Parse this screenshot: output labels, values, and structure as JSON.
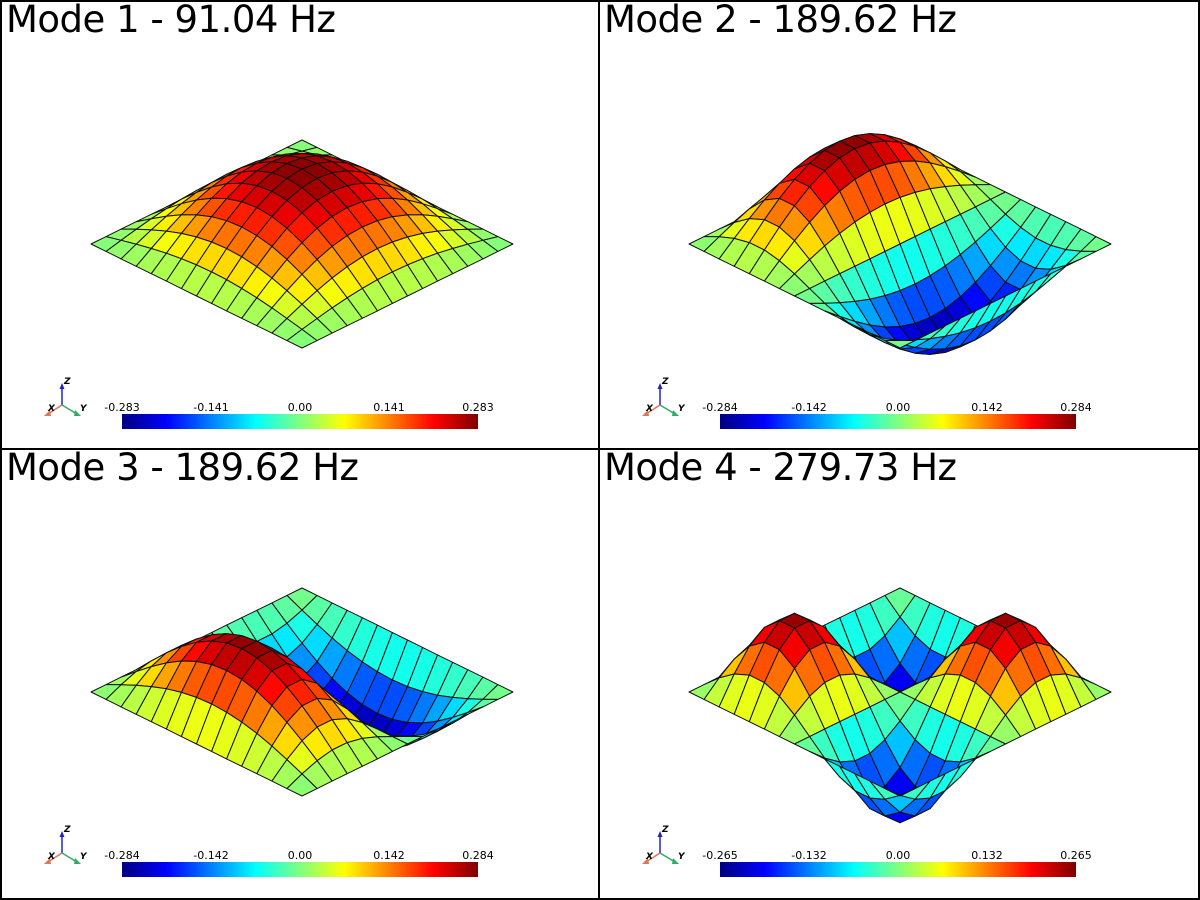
{
  "panels": [
    {
      "title": "Mode 1 - 91.04 Hz",
      "mode": "m1",
      "colorbar": {
        "min": -0.283,
        "max": 0.283,
        "ticks": [
          "-0.283",
          "-0.141",
          "0.00",
          "0.141",
          "0.283"
        ]
      }
    },
    {
      "title": "Mode 2 - 189.62 Hz",
      "mode": "m2",
      "colorbar": {
        "min": -0.284,
        "max": 0.284,
        "ticks": [
          "-0.284",
          "-0.142",
          "0.00",
          "0.142",
          "0.284"
        ]
      }
    },
    {
      "title": "Mode 3 - 189.62 Hz",
      "mode": "m3",
      "colorbar": {
        "min": -0.284,
        "max": 0.284,
        "ticks": [
          "-0.284",
          "-0.142",
          "0.00",
          "0.142",
          "0.284"
        ]
      }
    },
    {
      "title": "Mode 4 - 279.73 Hz",
      "mode": "m4",
      "colorbar": {
        "min": -0.265,
        "max": 0.265,
        "ticks": [
          "-0.265",
          "-0.132",
          "0.00",
          "0.132",
          "0.265"
        ]
      }
    }
  ],
  "axes_labels": {
    "x": "X",
    "y": "Y",
    "z": "Z"
  },
  "colormap": "jet"
}
